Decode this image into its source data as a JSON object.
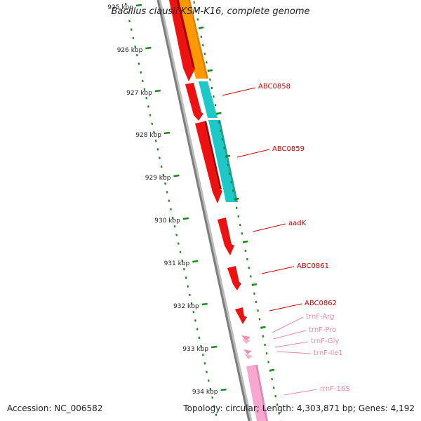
{
  "title": "Bacillus clausii KSM-K16, complete genome",
  "footer": {
    "accession": "Accession: NC_006582",
    "summary": "Topology: circular; Length: 4,303,871 bp; Genes: 4,192"
  },
  "colors": {
    "backbone": "#8a8a8a",
    "cds": "#ee1111",
    "trna": "#f090b8",
    "rrna": "#f7a8d0",
    "orange_track": "#ff9900",
    "cyan_track": "#1cc8c8",
    "tick": "#1a8a1a",
    "label_cds": "#cc0000",
    "label_rna": "#ee88b0"
  },
  "scale": {
    "labels": [
      "925 kbp",
      "926 kbp",
      "927 kbp",
      "928 kbp",
      "929 kbp",
      "930 kbp",
      "931 kbp",
      "932 kbp",
      "933 kbp",
      "934 kbp"
    ]
  },
  "features": [
    {
      "label": "ABC0858",
      "kind": "cds"
    },
    {
      "label": "ABC0859",
      "kind": "cds"
    },
    {
      "label": "aadK",
      "kind": "cds"
    },
    {
      "label": "ABC0861",
      "kind": "cds"
    },
    {
      "label": "ABC0862",
      "kind": "cds"
    },
    {
      "label": "trnF-Arg",
      "kind": "trna"
    },
    {
      "label": "trnF-Pro",
      "kind": "trna"
    },
    {
      "label": "trnF-Gly",
      "kind": "trna"
    },
    {
      "label": "trnF-Ile1",
      "kind": "trna"
    },
    {
      "label": "rrnF-16S",
      "kind": "rrna"
    }
  ]
}
